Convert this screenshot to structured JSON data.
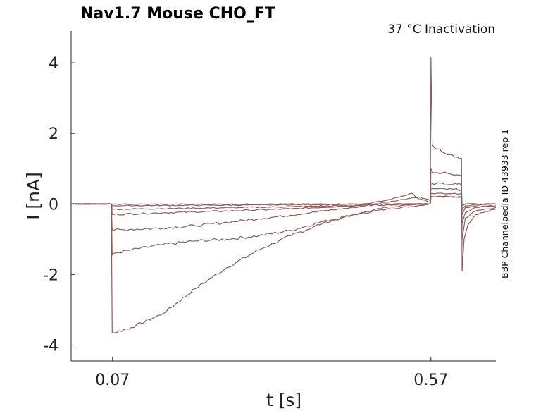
{
  "chart_data": {
    "type": "line",
    "title": "Nav1.7  Mouse  CHO_FT",
    "subtitle": "37 °C  Inactivation",
    "side_note": "BBP Channelpedia ID 43933 rep 1",
    "xlabel": "t [s]",
    "ylabel": "I [nA]",
    "xlim": [
      0.005,
      0.672
    ],
    "ylim": [
      -4.45,
      4.9
    ],
    "x_ticks": [
      {
        "value": 0.07,
        "label": "0.07"
      },
      {
        "value": 0.57,
        "label": "0.57"
      }
    ],
    "y_ticks": [
      {
        "value": 4,
        "label": "4"
      },
      {
        "value": 2,
        "label": "2"
      },
      {
        "value": 0,
        "label": "0"
      },
      {
        "value": -2,
        "label": "-2"
      },
      {
        "value": -4,
        "label": "-4"
      }
    ],
    "grid": false,
    "legend": "none",
    "trace_color": "#8c5c5c",
    "series": [
      {
        "x": [
          0.005,
          0.068,
          0.0695,
          0.072,
          0.1,
          0.15,
          0.2,
          0.25,
          0.3,
          0.35,
          0.4,
          0.45,
          0.5,
          0.55,
          0.569,
          0.57,
          0.572,
          0.575,
          0.6,
          0.618,
          0.619,
          0.622,
          0.628,
          0.64,
          0.672
        ],
        "y": [
          0.0,
          0.0,
          -3.65,
          -3.65,
          -3.5,
          -3.1,
          -2.4,
          -1.8,
          -1.3,
          -0.9,
          -0.55,
          -0.3,
          -0.15,
          -0.05,
          0.0,
          4.15,
          1.7,
          1.6,
          1.4,
          1.3,
          -1.9,
          -1.0,
          -0.6,
          -0.3,
          -0.15
        ]
      },
      {
        "x": [
          0.005,
          0.068,
          0.0695,
          0.072,
          0.1,
          0.15,
          0.2,
          0.25,
          0.3,
          0.35,
          0.4,
          0.45,
          0.5,
          0.55,
          0.569,
          0.57,
          0.572,
          0.6,
          0.618,
          0.619,
          0.624,
          0.64,
          0.672
        ],
        "y": [
          0.0,
          0.0,
          -1.45,
          -1.4,
          -1.3,
          -1.15,
          -1.05,
          -1.0,
          -0.9,
          -0.75,
          -0.5,
          -0.3,
          -0.1,
          0.0,
          0.0,
          1.0,
          0.9,
          0.85,
          0.8,
          -1.0,
          -0.4,
          -0.2,
          -0.1
        ]
      },
      {
        "x": [
          0.005,
          0.068,
          0.0695,
          0.072,
          0.1,
          0.15,
          0.2,
          0.25,
          0.3,
          0.35,
          0.4,
          0.45,
          0.5,
          0.55,
          0.569,
          0.57,
          0.572,
          0.6,
          0.618,
          0.619,
          0.624,
          0.64,
          0.672
        ],
        "y": [
          0.0,
          0.0,
          -0.75,
          -0.75,
          -0.72,
          -0.68,
          -0.62,
          -0.52,
          -0.42,
          -0.32,
          -0.2,
          -0.1,
          0.05,
          0.2,
          0.1,
          0.6,
          0.58,
          0.55,
          0.55,
          -0.55,
          -0.25,
          -0.1,
          -0.05
        ]
      },
      {
        "x": [
          0.005,
          0.068,
          0.0695,
          0.072,
          0.15,
          0.25,
          0.35,
          0.45,
          0.5,
          0.54,
          0.55,
          0.569,
          0.57,
          0.572,
          0.618,
          0.619,
          0.624,
          0.672
        ],
        "y": [
          0.0,
          0.0,
          -0.3,
          -0.3,
          -0.25,
          -0.2,
          -0.14,
          -0.05,
          0.1,
          0.3,
          0.15,
          0.05,
          0.45,
          0.43,
          0.4,
          -0.3,
          -0.1,
          -0.05
        ]
      },
      {
        "x": [
          0.005,
          0.068,
          0.0695,
          0.072,
          0.2,
          0.35,
          0.5,
          0.569,
          0.57,
          0.572,
          0.618,
          0.619,
          0.624,
          0.672
        ],
        "y": [
          0.0,
          0.0,
          -0.15,
          -0.15,
          -0.12,
          -0.08,
          -0.03,
          0.0,
          0.3,
          0.3,
          0.3,
          -0.15,
          -0.05,
          0.0
        ]
      },
      {
        "x": [
          0.005,
          0.068,
          0.0695,
          0.072,
          0.3,
          0.569,
          0.57,
          0.618,
          0.619,
          0.624,
          0.672
        ],
        "y": [
          0.0,
          0.0,
          -0.05,
          -0.05,
          -0.03,
          0.0,
          0.22,
          0.2,
          -0.05,
          0.0,
          0.0
        ]
      },
      {
        "x": [
          0.005,
          0.068,
          0.0695,
          0.569,
          0.57,
          0.618,
          0.619,
          0.672
        ],
        "y": [
          0.0,
          0.0,
          -0.01,
          0.0,
          0.2,
          0.2,
          0.0,
          0.0
        ]
      }
    ]
  }
}
